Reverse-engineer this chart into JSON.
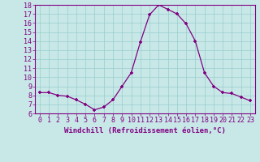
{
  "x": [
    0,
    1,
    2,
    3,
    4,
    5,
    6,
    7,
    8,
    9,
    10,
    11,
    12,
    13,
    14,
    15,
    16,
    17,
    18,
    19,
    20,
    21,
    22,
    23
  ],
  "y": [
    8.3,
    8.3,
    8.0,
    7.9,
    7.5,
    7.0,
    6.4,
    6.7,
    7.5,
    9.0,
    10.5,
    13.9,
    16.9,
    18.0,
    17.5,
    17.0,
    15.9,
    14.0,
    10.5,
    9.0,
    8.3,
    8.2,
    7.8,
    7.4
  ],
  "line_color": "#800080",
  "marker_color": "#800080",
  "bg_color": "#c8e8e8",
  "grid_color": "#99cccc",
  "xlabel": "Windchill (Refroidissement éolien,°C)",
  "xlabel_fontsize": 6.5,
  "tick_fontsize": 6.0,
  "ylim": [
    6,
    18
  ],
  "xlim": [
    -0.5,
    23.5
  ],
  "yticks": [
    6,
    7,
    8,
    9,
    10,
    11,
    12,
    13,
    14,
    15,
    16,
    17,
    18
  ]
}
